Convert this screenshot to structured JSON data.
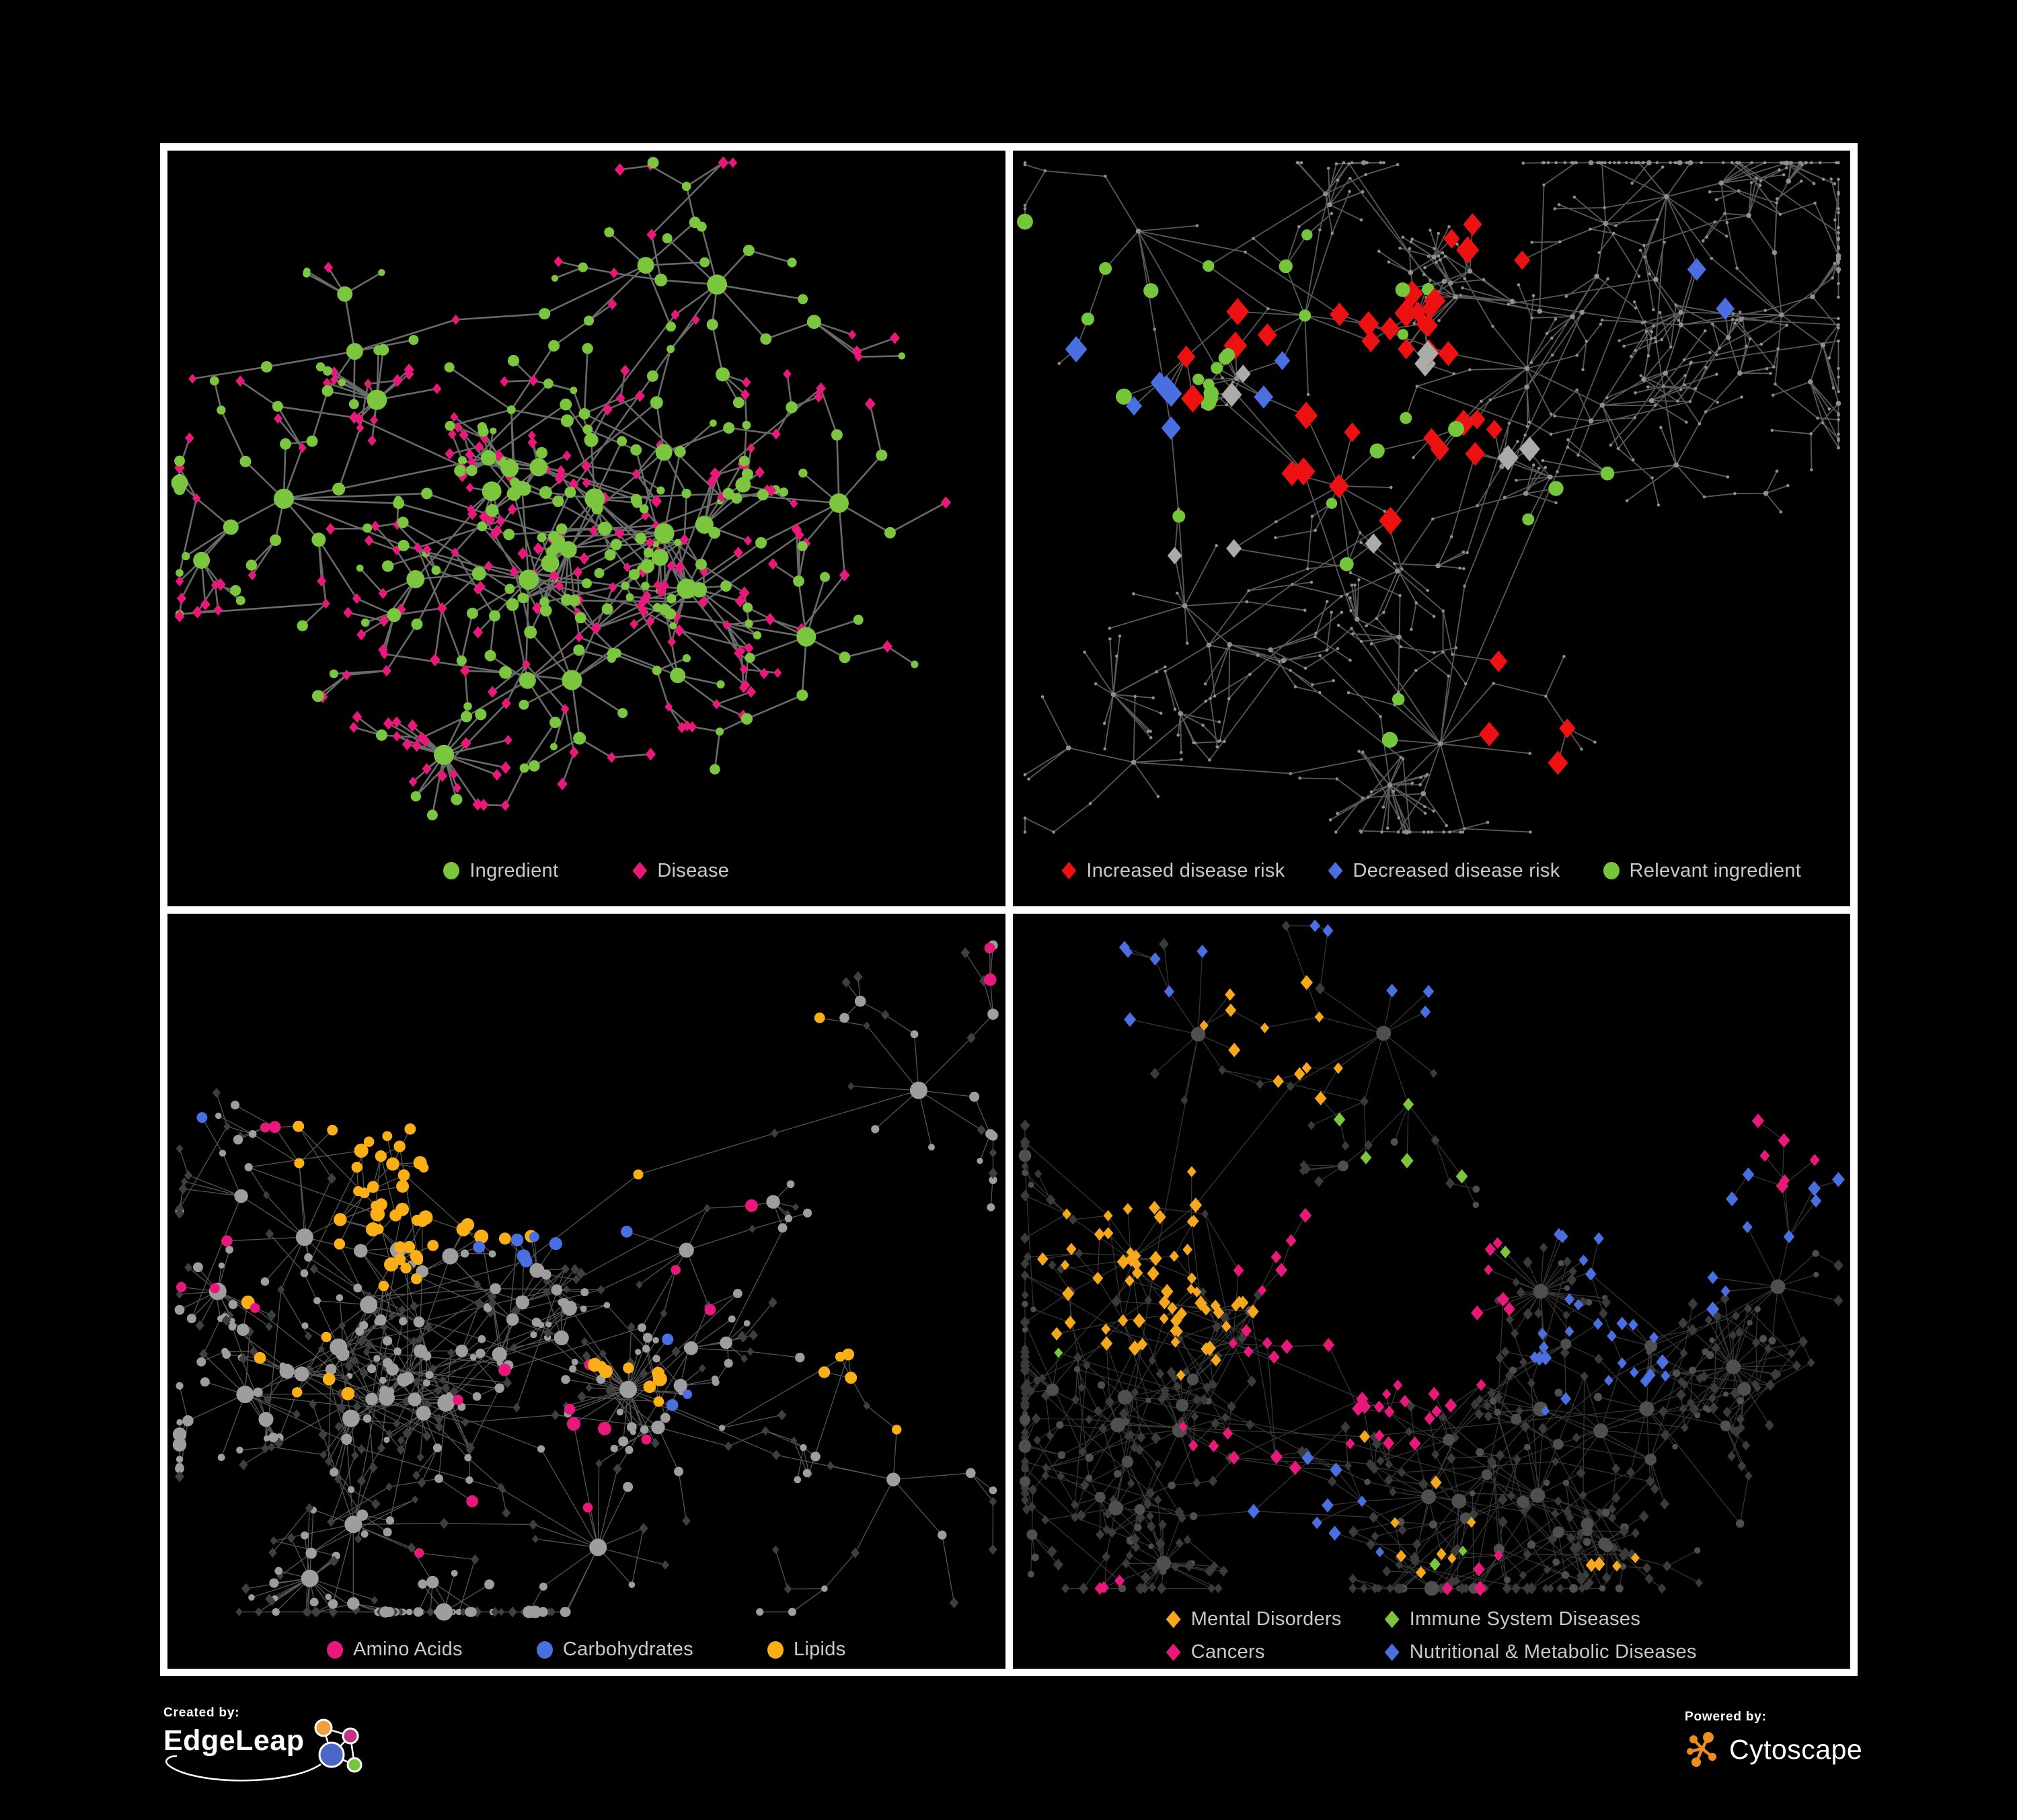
{
  "figure": {
    "background": "#000000",
    "frame_color": "#ffffff",
    "legend_text_color": "#c9c9c9"
  },
  "chart_data": {
    "type": "network",
    "panels": [
      {
        "name": "ingredient-disease-network",
        "description": "Ingredient-disease association network: green circles are food ingredients, pink diamonds are diseases, gray edges are associations.",
        "legend": [
          {
            "label": "Ingredient",
            "shape": "circle",
            "color": "#7cc63f"
          },
          {
            "label": "Disease",
            "shape": "diamond",
            "color": "#e8197b"
          }
        ],
        "network": {
          "style": "p1",
          "seed": 11,
          "edge_color": "#757575",
          "edge_width": 2.6,
          "edge_opacity": 0.9,
          "hubs": 15,
          "min_branch": 4,
          "max_branch": 10,
          "len": 95,
          "depth": 4,
          "cross": 0.1,
          "margin_bottom": 110,
          "node_colors": {
            "primary": "#7cc63f",
            "secondary": "#e8197b"
          },
          "fans": [
            {
              "x": 0.33,
              "y": 0.8,
              "count": 22
            },
            {
              "x": 0.62,
              "y": 0.58,
              "count": 14
            },
            {
              "x": 0.25,
              "y": 0.33,
              "count": 16
            }
          ],
          "highlights": []
        }
      },
      {
        "name": "disease-risk-network",
        "description": "Same network, highlighting diseases with increased risk (red diamonds), decreased risk (blue diamonds) and relevant ingredients (green circles); unhighlighted nodes are small gray dots.",
        "legend": [
          {
            "label": "Increased disease risk",
            "shape": "diamond",
            "color": "#ee1111"
          },
          {
            "label": "Decreased disease risk",
            "shape": "diamond",
            "color": "#4a6fe0"
          },
          {
            "label": "Relevant ingredient",
            "shape": "circle",
            "color": "#76c63c"
          }
        ],
        "network": {
          "style": "p2",
          "seed": 23,
          "edge_color": "#696969",
          "edge_width": 1.8,
          "edge_opacity": 0.85,
          "hubs": 15,
          "min_branch": 4,
          "max_branch": 9,
          "len": 92,
          "depth": 4,
          "cross": 0.07,
          "margin_bottom": 110,
          "node_colors": {
            "plain": "#8f8f8f"
          },
          "fans": [
            {
              "x": 0.45,
              "y": 0.84,
              "count": 24
            },
            {
              "x": 0.12,
              "y": 0.72,
              "count": 14
            }
          ],
          "highlights": [
            {
              "shape": "diamond",
              "color": "#ee1111",
              "size": 30,
              "count": 26,
              "cx": 0.43,
              "cy": 0.32,
              "spread": 0.13
            },
            {
              "shape": "diamond",
              "color": "#ee1111",
              "size": 30,
              "count": 5,
              "cx": 0.23,
              "cy": 0.24,
              "spread": 0.07
            },
            {
              "shape": "diamond",
              "color": "#ee1111",
              "size": 30,
              "count": 4,
              "cx": 0.6,
              "cy": 0.74,
              "spread": 0.07
            },
            {
              "shape": "diamond",
              "color": "#ee1111",
              "size": 30,
              "count": 4,
              "cx": 0.56,
              "cy": 0.13,
              "spread": 0.06
            },
            {
              "shape": "diamond",
              "color": "#4a6fe0",
              "size": 28,
              "count": 6,
              "cx": 0.14,
              "cy": 0.3,
              "spread": 0.07
            },
            {
              "shape": "diamond",
              "color": "#4a6fe0",
              "size": 28,
              "count": 2,
              "cx": 0.85,
              "cy": 0.17,
              "spread": 0.03
            },
            {
              "shape": "diamond",
              "color": "#4a6fe0",
              "size": 28,
              "count": 2,
              "cx": 0.34,
              "cy": 0.3,
              "spread": 0.04
            },
            {
              "shape": "diamond",
              "color": "#ababab",
              "size": 27,
              "count": 5,
              "cx": 0.4,
              "cy": 0.36,
              "spread": 0.14
            },
            {
              "shape": "diamond",
              "color": "#ababab",
              "size": 27,
              "count": 2,
              "cx": 0.2,
              "cy": 0.55,
              "spread": 0.08
            },
            {
              "shape": "diamond",
              "color": "#ababab",
              "size": 27,
              "count": 2,
              "cx": 0.6,
              "cy": 0.4,
              "spread": 0.06
            },
            {
              "shape": "circle",
              "color": "#76c63c",
              "size": 20,
              "count": 22,
              "cx": 0.33,
              "cy": 0.33,
              "spread": 0.16
            },
            {
              "shape": "circle",
              "color": "#76c63c",
              "size": 20,
              "count": 4,
              "cx": 0.12,
              "cy": 0.18,
              "spread": 0.08
            },
            {
              "shape": "circle",
              "color": "#76c63c",
              "size": 20,
              "count": 3,
              "cx": 0.68,
              "cy": 0.5,
              "spread": 0.1
            },
            {
              "shape": "circle",
              "color": "#76c63c",
              "size": 20,
              "count": 2,
              "cx": 0.45,
              "cy": 0.75,
              "spread": 0.05
            }
          ]
        }
      },
      {
        "name": "nutrient-class-network",
        "description": "Same network, ingredients colored by nutrient class: pink circles amino acids, blue circles carbohydrates, orange circles lipids; other ingredients light gray circles, diseases dark gray diamonds.",
        "legend": [
          {
            "label": "Amino Acids",
            "shape": "circle",
            "color": "#e8197b"
          },
          {
            "label": "Carbohydrates",
            "shape": "circle",
            "color": "#4a6fe0"
          },
          {
            "label": "Lipids",
            "shape": "circle",
            "color": "#f9af15"
          }
        ],
        "network": {
          "style": "p3",
          "seed": 37,
          "edge_color": "#9a9a9a",
          "edge_width": 1.3,
          "edge_opacity": 0.55,
          "hubs": 13,
          "min_branch": 5,
          "max_branch": 11,
          "len": 90,
          "depth": 4,
          "cross": 0.16,
          "margin_bottom": 85,
          "node_colors": {
            "plain": "#9e9e9e",
            "dim": "#3f3f3f"
          },
          "fans": [
            {
              "x": 0.55,
              "y": 0.63,
              "count": 40
            },
            {
              "x": 0.17,
              "y": 0.88,
              "count": 22
            },
            {
              "x": 0.06,
              "y": 0.5,
              "count": 16
            },
            {
              "x": 0.33,
              "y": 0.93,
              "count": 18
            }
          ],
          "highlights": [
            {
              "shape": "circle",
              "color": "#f9af15",
              "size": 18,
              "count": 30,
              "cx": 0.34,
              "cy": 0.2,
              "spread": 0.1
            },
            {
              "shape": "circle",
              "color": "#f9af15",
              "size": 18,
              "count": 14,
              "cx": 0.28,
              "cy": 0.4,
              "spread": 0.07
            },
            {
              "shape": "circle",
              "color": "#f9af15",
              "size": 18,
              "count": 8,
              "cx": 0.55,
              "cy": 0.62,
              "spread": 0.08
            },
            {
              "shape": "circle",
              "color": "#f9af15",
              "size": 18,
              "count": 6,
              "cx": 0.15,
              "cy": 0.6,
              "spread": 0.18
            },
            {
              "shape": "circle",
              "color": "#f9af15",
              "size": 18,
              "count": 5,
              "cx": 0.8,
              "cy": 0.58,
              "spread": 0.1
            },
            {
              "shape": "circle",
              "color": "#f9af15",
              "size": 18,
              "count": 4,
              "cx": 0.45,
              "cy": 0.05,
              "spread": 0.12
            },
            {
              "shape": "circle",
              "color": "#4a6fe0",
              "size": 17,
              "count": 7,
              "cx": 0.47,
              "cy": 0.18,
              "spread": 0.06
            },
            {
              "shape": "circle",
              "color": "#4a6fe0",
              "size": 17,
              "count": 3,
              "cx": 0.62,
              "cy": 0.6,
              "spread": 0.2
            },
            {
              "shape": "circle",
              "color": "#4a6fe0",
              "size": 17,
              "count": 1,
              "cx": 0.03,
              "cy": 0.3,
              "spread": 0.04
            },
            {
              "shape": "circle",
              "color": "#e8197b",
              "size": 17,
              "count": 10,
              "cx": 0.45,
              "cy": 0.75,
              "spread": 0.25
            },
            {
              "shape": "circle",
              "color": "#e8197b",
              "size": 17,
              "count": 4,
              "cx": 0.08,
              "cy": 0.45,
              "spread": 0.12
            },
            {
              "shape": "circle",
              "color": "#e8197b",
              "size": 17,
              "count": 3,
              "cx": 0.6,
              "cy": 0.4,
              "spread": 0.15
            },
            {
              "shape": "circle",
              "color": "#e8197b",
              "size": 17,
              "count": 2,
              "cx": 0.9,
              "cy": 0.05,
              "spread": 0.08
            },
            {
              "shape": "circle",
              "color": "#e8197b",
              "size": 17,
              "count": 2,
              "cx": 0.35,
              "cy": 0.03,
              "spread": 0.06
            }
          ]
        }
      },
      {
        "name": "disease-class-network",
        "description": "Same network, diseases colored by class: orange diamonds mental disorders, green diamonds immune system diseases, pink diamonds cancers, blue diamonds nutritional & metabolic diseases; other nodes dark gray.",
        "legend": [
          {
            "label": "Mental Disorders",
            "shape": "diamond",
            "color": "#f5a81c"
          },
          {
            "label": "Immune System Diseases",
            "shape": "diamond",
            "color": "#7cc63f"
          },
          {
            "label": "Cancers",
            "shape": "diamond",
            "color": "#e8197b"
          },
          {
            "label": "Nutritional & Metabolic Diseases",
            "shape": "diamond",
            "color": "#4a6fe0"
          }
        ],
        "network": {
          "style": "p4",
          "seed": 53,
          "edge_color": "#707070",
          "edge_width": 1.2,
          "edge_opacity": 0.5,
          "hubs": 16,
          "min_branch": 5,
          "max_branch": 11,
          "len": 88,
          "depth": 4,
          "cross": 0.18,
          "margin_bottom": 120,
          "node_colors": {
            "plain": "#4f4f4f",
            "dim": "#3b3b3b"
          },
          "fans": [
            {
              "x": 0.63,
              "y": 0.5,
              "count": 36
            },
            {
              "x": 0.18,
              "y": 0.86,
              "count": 26
            },
            {
              "x": 0.86,
              "y": 0.6,
              "count": 30
            },
            {
              "x": 0.5,
              "y": 0.92,
              "count": 16
            }
          ],
          "highlights": [
            {
              "shape": "diamond",
              "color": "#f5a81c",
              "size": 16,
              "count": 60,
              "cx": 0.16,
              "cy": 0.45,
              "spread": 0.1
            },
            {
              "shape": "diamond",
              "color": "#f5a81c",
              "size": 16,
              "count": 12,
              "cx": 0.32,
              "cy": 0.15,
              "spread": 0.1
            },
            {
              "shape": "diamond",
              "color": "#f5a81c",
              "size": 16,
              "count": 8,
              "cx": 0.46,
              "cy": 0.78,
              "spread": 0.15
            },
            {
              "shape": "diamond",
              "color": "#f5a81c",
              "size": 16,
              "count": 4,
              "cx": 0.74,
              "cy": 0.9,
              "spread": 0.08
            },
            {
              "shape": "diamond",
              "color": "#e8197b",
              "size": 16,
              "count": 36,
              "cx": 0.43,
              "cy": 0.52,
              "spread": 0.09
            },
            {
              "shape": "diamond",
              "color": "#e8197b",
              "size": 16,
              "count": 8,
              "cx": 0.27,
              "cy": 0.72,
              "spread": 0.1
            },
            {
              "shape": "diamond",
              "color": "#e8197b",
              "size": 16,
              "count": 6,
              "cx": 0.9,
              "cy": 0.22,
              "spread": 0.05
            },
            {
              "shape": "diamond",
              "color": "#e8197b",
              "size": 16,
              "count": 5,
              "cx": 0.55,
              "cy": 0.88,
              "spread": 0.1
            },
            {
              "shape": "diamond",
              "color": "#e8197b",
              "size": 16,
              "count": 3,
              "cx": 0.13,
              "cy": 0.9,
              "spread": 0.06
            },
            {
              "shape": "diamond",
              "color": "#4a6fe0",
              "size": 16,
              "count": 22,
              "cx": 0.7,
              "cy": 0.6,
              "spread": 0.1
            },
            {
              "shape": "diamond",
              "color": "#4a6fe0",
              "size": 16,
              "count": 12,
              "cx": 0.8,
              "cy": 0.3,
              "spread": 0.09
            },
            {
              "shape": "diamond",
              "color": "#4a6fe0",
              "size": 16,
              "count": 8,
              "cx": 0.34,
              "cy": 0.83,
              "spread": 0.1
            },
            {
              "shape": "diamond",
              "color": "#4a6fe0",
              "size": 16,
              "count": 6,
              "cx": 0.08,
              "cy": 0.1,
              "spread": 0.09
            },
            {
              "shape": "diamond",
              "color": "#4a6fe0",
              "size": 16,
              "count": 5,
              "cx": 0.46,
              "cy": 0.06,
              "spread": 0.1
            },
            {
              "shape": "diamond",
              "color": "#4a6fe0",
              "size": 16,
              "count": 4,
              "cx": 0.97,
              "cy": 0.4,
              "spread": 0.05
            },
            {
              "shape": "diamond",
              "color": "#7cc63f",
              "size": 16,
              "count": 6,
              "cx": 0.46,
              "cy": 0.38,
              "spread": 0.15
            },
            {
              "shape": "diamond",
              "color": "#7cc63f",
              "size": 16,
              "count": 2,
              "cx": 0.52,
              "cy": 0.83,
              "spread": 0.06
            },
            {
              "shape": "diamond",
              "color": "#7cc63f",
              "size": 16,
              "count": 1,
              "cx": 0.1,
              "cy": 0.55,
              "spread": 0.05
            }
          ]
        }
      }
    ]
  },
  "branding": {
    "created_by": "Created by:",
    "creator": "EdgeLeap",
    "powered_by": "Powered by:",
    "product": "Cytoscape",
    "logo": {
      "orange": "#f2a03d",
      "magenta": "#c5327e",
      "blue": "#4a67c8",
      "green": "#76c63c",
      "cytoscape_orange": "#ee8b22",
      "white": "#ffffff"
    }
  }
}
